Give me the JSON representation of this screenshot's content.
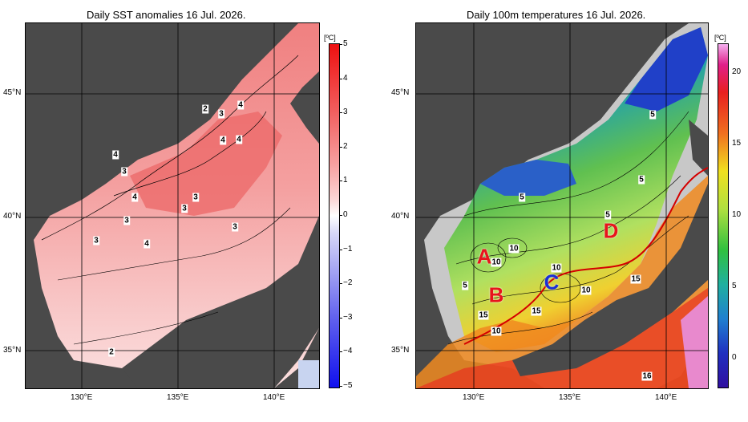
{
  "left_panel": {
    "title": "Daily SST anomalies 16 Jul. 2026.",
    "lat_labels": [
      "45°N",
      "40°N",
      "35°N"
    ],
    "lon_labels": [
      "130°E",
      "135°E",
      "140°E"
    ],
    "colorbar": {
      "unit": "[ºC]",
      "ticks": [
        "5",
        "4",
        "3",
        "2",
        "1",
        "0",
        "−1",
        "−2",
        "−3",
        "−4",
        "−5"
      ],
      "range": [
        -5,
        5
      ]
    },
    "contour_labels": [
      "2",
      "3",
      "4",
      "4",
      "4",
      "3",
      "4",
      "3",
      "4",
      "3",
      "4",
      "3",
      "3",
      "3",
      "2"
    ]
  },
  "right_panel": {
    "title": "Daily 100m temperatures 16 Jul. 2026.",
    "lat_labels": [
      "45°N",
      "40°N",
      "35°N"
    ],
    "lon_labels": [
      "130°E",
      "135°E",
      "140°E"
    ],
    "colorbar": {
      "unit": "[ºC]",
      "ticks": [
        "20",
        "15",
        "10",
        "5",
        "0"
      ],
      "range": [
        -2,
        22
      ]
    },
    "contour_labels": [
      "5",
      "5",
      "5",
      "5",
      "10",
      "10",
      "10",
      "5",
      "15",
      "15",
      "10",
      "10",
      "15",
      "16"
    ],
    "area_labels": [
      {
        "text": "A",
        "color": "#e8141c"
      },
      {
        "text": "B",
        "color": "#e8141c"
      },
      {
        "text": "C",
        "color": "#1a2fd6"
      },
      {
        "text": "D",
        "color": "#e8141c"
      }
    ]
  },
  "colors": {
    "land": "#4a4a4a",
    "ocean_outside": "#d0d0d0",
    "front_line": "#d40000"
  }
}
